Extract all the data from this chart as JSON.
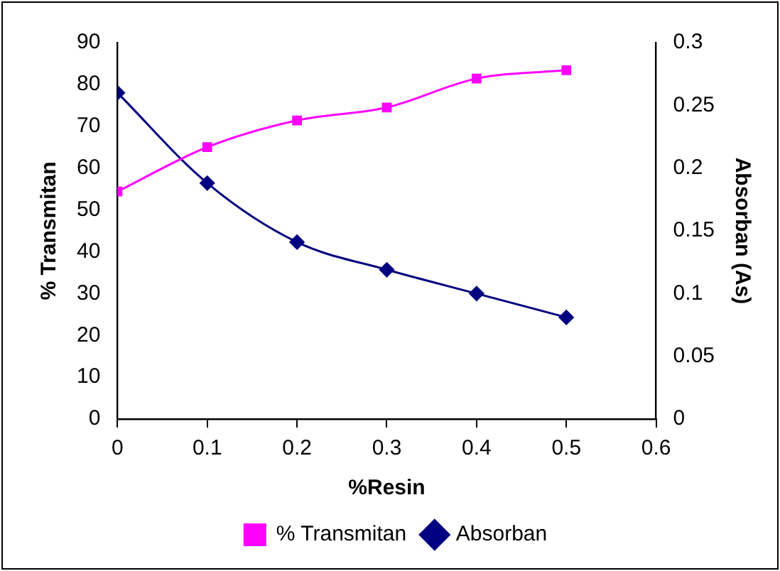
{
  "chart_data": {
    "type": "line",
    "xlabel": "%Resin",
    "ylabel": "% Transmitan",
    "y2label": "Absorban (As)",
    "x": [
      0,
      0.1,
      0.2,
      0.3,
      0.4,
      0.5
    ],
    "series": [
      {
        "name": "% Transmitan",
        "color": "#ff00ff",
        "marker": "square",
        "values": [
          54.4,
          65,
          71.4,
          74.5,
          81.4,
          83.4
        ]
      },
      {
        "name": "Absorban",
        "color": "#000080",
        "marker": "diamond",
        "axis": "y2",
        "values": [
          0.26,
          0.188,
          0.141,
          0.119,
          0.1,
          0.081
        ]
      }
    ],
    "xlim": [
      0,
      0.6
    ],
    "xticks": [
      0,
      0.1,
      0.2,
      0.3,
      0.4,
      0.5,
      0.6
    ],
    "ylim": [
      0,
      90
    ],
    "yticks": [
      0,
      10,
      20,
      30,
      40,
      50,
      60,
      70,
      80,
      90
    ],
    "y2lim": [
      0,
      0.3
    ],
    "y2ticks": [
      0,
      0.05,
      0.1,
      0.15,
      0.2,
      0.25,
      0.3
    ],
    "grid": false,
    "legend": "bottom"
  }
}
